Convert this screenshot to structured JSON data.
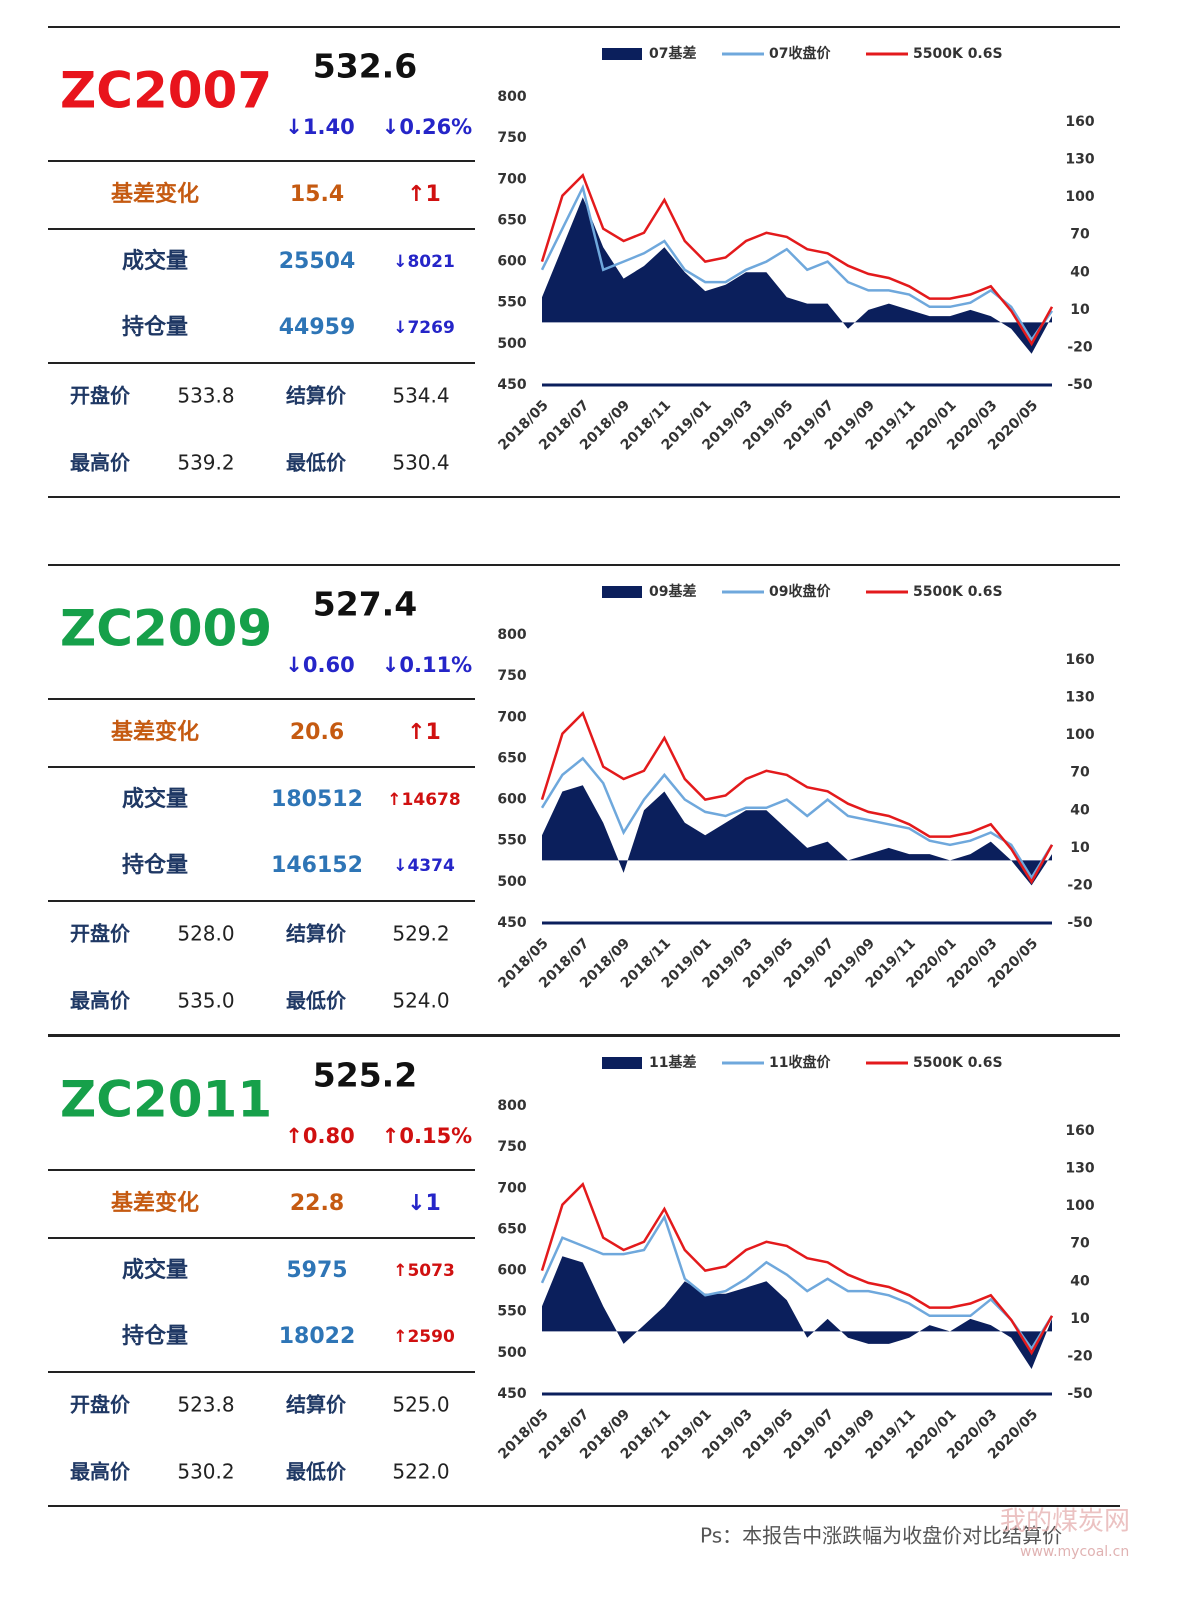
{
  "panels": [
    {
      "code": "ZC2007",
      "code_color": "#e8141c",
      "price": "532.6",
      "change": "↓1.40",
      "change_pct": "↓0.26%",
      "rows": [
        [
          "基差变化",
          "15.4",
          "↑1"
        ],
        [
          "成交量",
          "25504",
          "↓8021"
        ],
        [
          "持仓量",
          "44959",
          "↓7269"
        ]
      ],
      "prices": [
        [
          "开盘价",
          "533.8",
          "结算价",
          "534.4"
        ],
        [
          "最高价",
          "539.2",
          "最低价",
          "530.4"
        ]
      ]
    },
    {
      "code": "ZC2009",
      "code_color": "#16a04a",
      "price": "527.4",
      "change": "↓0.60",
      "change_pct": "↓0.11%",
      "rows": [
        [
          "基差变化",
          "20.6",
          "↑1"
        ],
        [
          "成交量",
          "180512",
          "↑14678"
        ],
        [
          "持仓量",
          "146152",
          "↓4374"
        ]
      ],
      "prices": [
        [
          "开盘价",
          "528.0",
          "结算价",
          "529.2"
        ],
        [
          "最高价",
          "535.0",
          "最低价",
          "524.0"
        ]
      ]
    },
    {
      "code": "ZC2011",
      "code_color": "#16a04a",
      "price": "525.2",
      "change": "↑0.80",
      "change_pct": "↑0.15%",
      "rows": [
        [
          "基差变化",
          "22.8",
          "↓1"
        ],
        [
          "成交量",
          "5975",
          "↑5073"
        ],
        [
          "持仓量",
          "18022",
          "↑2590"
        ]
      ],
      "prices": [
        [
          "开盘价",
          "523.8",
          "结算价",
          "525.0"
        ],
        [
          "最高价",
          "530.2",
          "最低价",
          "522.0"
        ]
      ]
    }
  ],
  "chart_data": [
    {
      "type": "combo",
      "x": [
        "2018/05",
        "2018/06",
        "2018/07",
        "2018/08",
        "2018/09",
        "2018/10",
        "2018/11",
        "2018/12",
        "2019/01",
        "2019/02",
        "2019/03",
        "2019/04",
        "2019/05",
        "2019/06",
        "2019/07",
        "2019/08",
        "2019/09",
        "2019/10",
        "2019/11",
        "2019/12",
        "2020/01",
        "2020/02",
        "2020/03",
        "2020/04",
        "2020/05",
        "2020/06"
      ],
      "xticks": [
        "2018/05",
        "2018/07",
        "2018/09",
        "2018/11",
        "2019/01",
        "2019/03",
        "2019/05",
        "2019/07",
        "2019/09",
        "2019/11",
        "2020/01",
        "2020/03",
        "2020/05"
      ],
      "ylim": [
        450,
        800
      ],
      "yticks": [
        450,
        500,
        550,
        600,
        650,
        700,
        750,
        800
      ],
      "y2lim": [
        -50,
        180
      ],
      "y2ticks": [
        -50,
        -20,
        10,
        40,
        70,
        100,
        130,
        160
      ],
      "series": [
        {
          "name": "07基差",
          "color": "#0b1f5c",
          "kind": "area",
          "axis": "y2",
          "values": [
            20,
            60,
            100,
            60,
            35,
            45,
            60,
            40,
            25,
            30,
            40,
            40,
            20,
            15,
            15,
            -5,
            10,
            15,
            10,
            5,
            5,
            10,
            5,
            -5,
            -25,
            5
          ]
        },
        {
          "name": "07收盘价",
          "color": "#6fa8dc",
          "kind": "line",
          "values": [
            590,
            640,
            690,
            590,
            600,
            610,
            625,
            590,
            575,
            575,
            590,
            600,
            615,
            590,
            600,
            575,
            565,
            565,
            560,
            545,
            545,
            550,
            565,
            545,
            505,
            540
          ]
        },
        {
          "name": "5500K 0.6S",
          "color": "#e31a1c",
          "kind": "line",
          "values": [
            600,
            680,
            705,
            640,
            625,
            635,
            675,
            625,
            600,
            605,
            625,
            635,
            630,
            615,
            610,
            595,
            585,
            580,
            570,
            555,
            555,
            560,
            570,
            540,
            500,
            545
          ]
        }
      ]
    },
    {
      "type": "combo",
      "x": [
        "2018/05",
        "2018/06",
        "2018/07",
        "2018/08",
        "2018/09",
        "2018/10",
        "2018/11",
        "2018/12",
        "2019/01",
        "2019/02",
        "2019/03",
        "2019/04",
        "2019/05",
        "2019/06",
        "2019/07",
        "2019/08",
        "2019/09",
        "2019/10",
        "2019/11",
        "2019/12",
        "2020/01",
        "2020/02",
        "2020/03",
        "2020/04",
        "2020/05",
        "2020/06"
      ],
      "xticks": [
        "2018/05",
        "2018/07",
        "2018/09",
        "2018/11",
        "2019/01",
        "2019/03",
        "2019/05",
        "2019/07",
        "2019/09",
        "2019/11",
        "2020/01",
        "2020/03",
        "2020/05"
      ],
      "ylim": [
        450,
        800
      ],
      "yticks": [
        450,
        500,
        550,
        600,
        650,
        700,
        750,
        800
      ],
      "y2lim": [
        -50,
        180
      ],
      "y2ticks": [
        -50,
        -20,
        10,
        40,
        70,
        100,
        130,
        160
      ],
      "series": [
        {
          "name": "09基差",
          "color": "#0b1f5c",
          "kind": "area",
          "axis": "y2",
          "values": [
            20,
            55,
            60,
            30,
            -10,
            40,
            55,
            30,
            20,
            30,
            40,
            40,
            25,
            10,
            15,
            0,
            5,
            10,
            5,
            5,
            0,
            5,
            15,
            0,
            -20,
            5
          ]
        },
        {
          "name": "09收盘价",
          "color": "#6fa8dc",
          "kind": "line",
          "values": [
            590,
            630,
            650,
            620,
            560,
            600,
            630,
            600,
            585,
            580,
            590,
            590,
            600,
            580,
            600,
            580,
            575,
            570,
            565,
            550,
            545,
            550,
            560,
            545,
            505,
            545
          ]
        },
        {
          "name": "5500K 0.6S",
          "color": "#e31a1c",
          "kind": "line",
          "values": [
            600,
            680,
            705,
            640,
            625,
            635,
            675,
            625,
            600,
            605,
            625,
            635,
            630,
            615,
            610,
            595,
            585,
            580,
            570,
            555,
            555,
            560,
            570,
            540,
            500,
            545
          ]
        }
      ]
    },
    {
      "type": "combo",
      "x": [
        "2018/05",
        "2018/06",
        "2018/07",
        "2018/08",
        "2018/09",
        "2018/10",
        "2018/11",
        "2018/12",
        "2019/01",
        "2019/02",
        "2019/03",
        "2019/04",
        "2019/05",
        "2019/06",
        "2019/07",
        "2019/08",
        "2019/09",
        "2019/10",
        "2019/11",
        "2019/12",
        "2020/01",
        "2020/02",
        "2020/03",
        "2020/04",
        "2020/05",
        "2020/06"
      ],
      "xticks": [
        "2018/05",
        "2018/07",
        "2018/09",
        "2018/11",
        "2019/01",
        "2019/03",
        "2019/05",
        "2019/07",
        "2019/09",
        "2019/11",
        "2020/01",
        "2020/03",
        "2020/05"
      ],
      "ylim": [
        450,
        800
      ],
      "yticks": [
        450,
        500,
        550,
        600,
        650,
        700,
        750,
        800
      ],
      "y2lim": [
        -50,
        180
      ],
      "y2ticks": [
        -50,
        -20,
        10,
        40,
        70,
        100,
        130,
        160
      ],
      "series": [
        {
          "name": "11基差",
          "color": "#0b1f5c",
          "kind": "area",
          "axis": "y2",
          "values": [
            20,
            60,
            55,
            20,
            -10,
            5,
            20,
            40,
            30,
            30,
            35,
            40,
            25,
            -5,
            10,
            -5,
            -10,
            -10,
            -5,
            5,
            0,
            10,
            5,
            -5,
            -30,
            10
          ]
        },
        {
          "name": "11收盘价",
          "color": "#6fa8dc",
          "kind": "line",
          "values": [
            585,
            640,
            630,
            620,
            620,
            625,
            665,
            590,
            570,
            575,
            590,
            610,
            595,
            575,
            590,
            575,
            575,
            570,
            560,
            545,
            545,
            545,
            565,
            540,
            505,
            545
          ]
        },
        {
          "name": "5500K 0.6S",
          "color": "#e31a1c",
          "kind": "line",
          "values": [
            600,
            680,
            705,
            640,
            625,
            635,
            675,
            625,
            600,
            605,
            625,
            635,
            630,
            615,
            610,
            595,
            585,
            580,
            570,
            555,
            555,
            560,
            570,
            540,
            500,
            545
          ]
        }
      ]
    }
  ],
  "footer": "Ps：本报告中涨跌幅为收盘价对比结算价",
  "watermark": [
    "我的煤炭网",
    "www.mycoal.cn"
  ]
}
